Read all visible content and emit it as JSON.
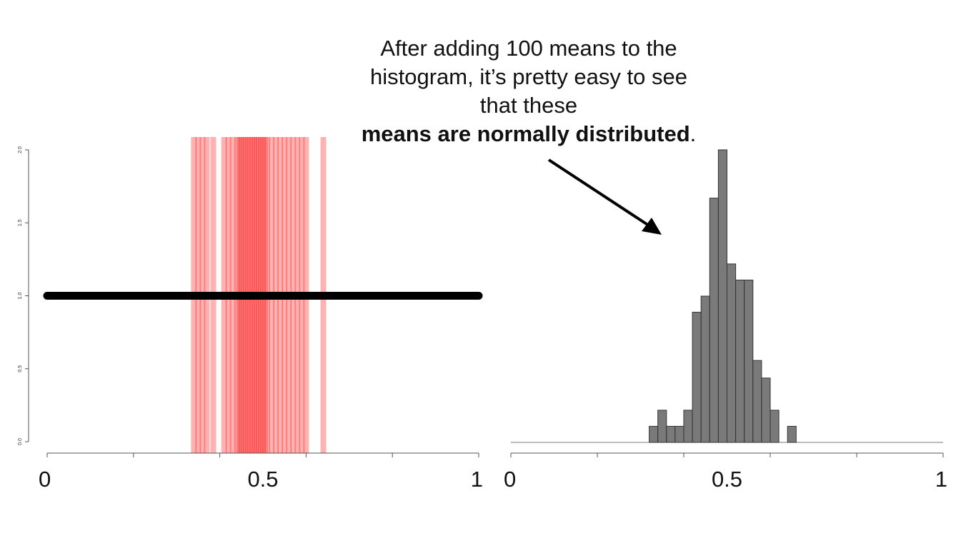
{
  "annotation": {
    "line1": "After adding 100 means to the",
    "line2": "histogram, it’s pretty easy to see",
    "line3": "that these",
    "line4_bold": "means are normally distributed",
    "line4_tail": "."
  },
  "colors": {
    "mean_line": "#ff0000",
    "uniform_line": "#000000",
    "hist_bar": "#7a7a7a",
    "arrow": "#000000"
  },
  "chart_data": [
    {
      "type": "line",
      "panel": "left",
      "title": "",
      "xlabel": "",
      "ylabel": "",
      "xlim": [
        0,
        1
      ],
      "ylim": [
        0,
        2
      ],
      "x_tick_labels": [
        "0",
        "0.5",
        "1"
      ],
      "y_tick_labels": [
        "0.0",
        "0.5",
        "1.0",
        "1.5",
        "2.0"
      ],
      "series": [
        {
          "x": [
            0,
            1
          ],
          "values": [
            1,
            1
          ]
        }
      ],
      "sample_means_vertical_lines": [
        0.34,
        0.35,
        0.36,
        0.37,
        0.385,
        0.41,
        0.42,
        0.43,
        0.44,
        0.445,
        0.45,
        0.455,
        0.46,
        0.465,
        0.47,
        0.475,
        0.48,
        0.485,
        0.49,
        0.495,
        0.5,
        0.505,
        0.51,
        0.52,
        0.53,
        0.54,
        0.55,
        0.56,
        0.57,
        0.58,
        0.59,
        0.6,
        0.64
      ]
    },
    {
      "type": "bar",
      "panel": "right",
      "title": "",
      "xlabel": "",
      "ylabel": "",
      "xlim": [
        0,
        1
      ],
      "ylim": [
        0,
        2
      ],
      "x_tick_labels": [
        "0",
        "0.5",
        "1"
      ],
      "bin_width": 0.02,
      "bins": [
        {
          "start": 0.32,
          "value": 0.11
        },
        {
          "start": 0.34,
          "value": 0.22
        },
        {
          "start": 0.36,
          "value": 0.11
        },
        {
          "start": 0.38,
          "value": 0.11
        },
        {
          "start": 0.4,
          "value": 0.22
        },
        {
          "start": 0.42,
          "value": 0.89
        },
        {
          "start": 0.44,
          "value": 1.0
        },
        {
          "start": 0.46,
          "value": 1.67
        },
        {
          "start": 0.48,
          "value": 2.0
        },
        {
          "start": 0.5,
          "value": 1.22
        },
        {
          "start": 0.52,
          "value": 1.11
        },
        {
          "start": 0.54,
          "value": 1.11
        },
        {
          "start": 0.56,
          "value": 0.56
        },
        {
          "start": 0.58,
          "value": 0.44
        },
        {
          "start": 0.6,
          "value": 0.22
        },
        {
          "start": 0.62,
          "value": 0
        },
        {
          "start": 0.64,
          "value": 0.11
        }
      ]
    }
  ]
}
